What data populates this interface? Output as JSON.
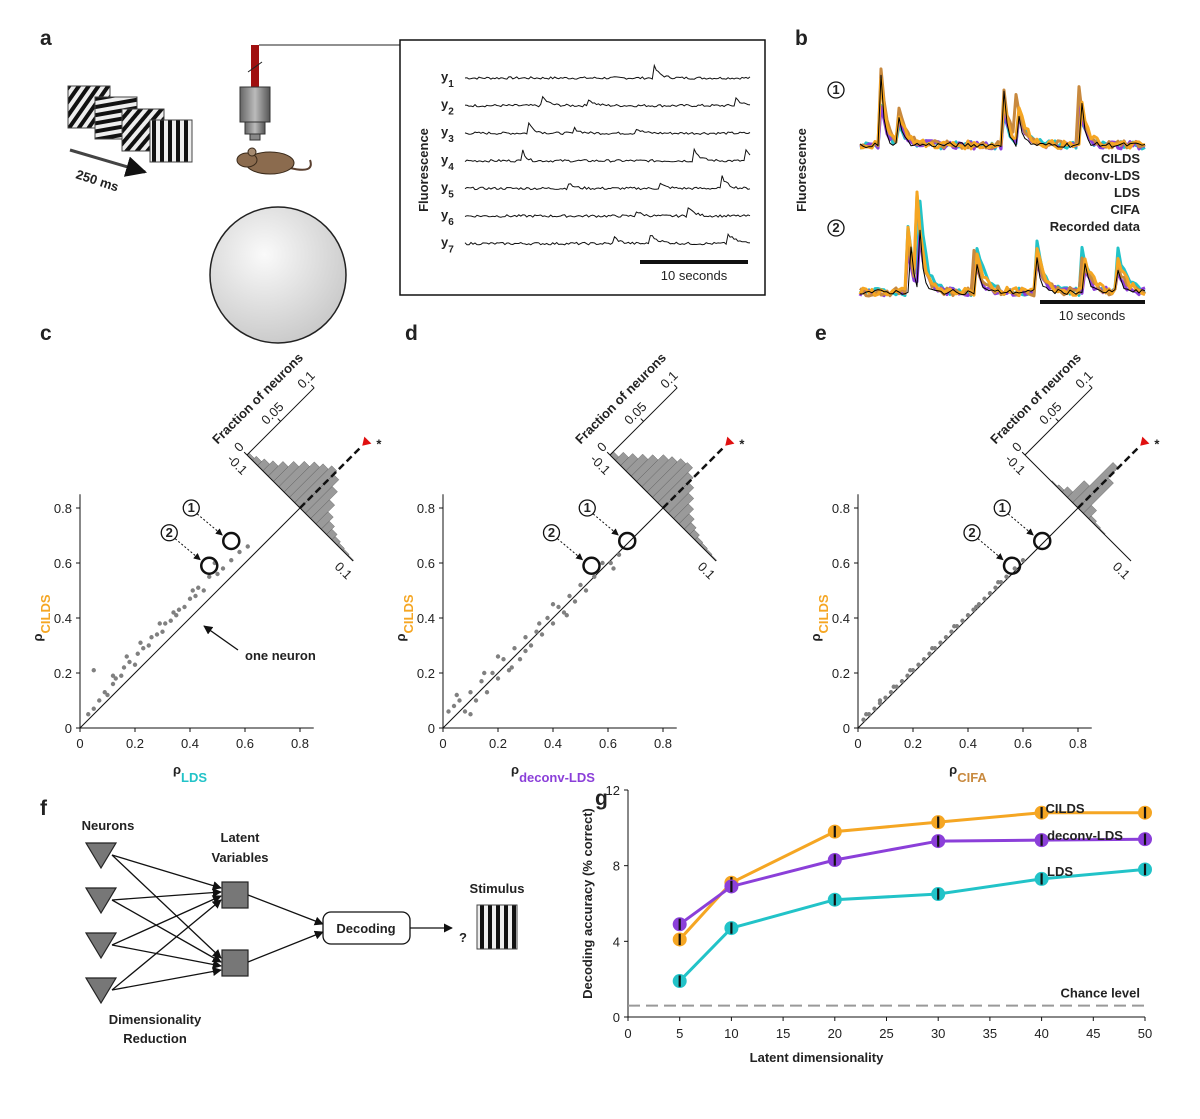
{
  "panel_labels": [
    "a",
    "b",
    "c",
    "d",
    "e",
    "f",
    "g"
  ],
  "panel_a": {
    "stimulus_duration": "250 ms",
    "ylabel": "Fluorescence",
    "trace_labels": [
      {
        "main": "y",
        "sub": "1"
      },
      {
        "main": "y",
        "sub": "2"
      },
      {
        "main": "y",
        "sub": "3"
      },
      {
        "main": "y",
        "sub": "4"
      },
      {
        "main": "y",
        "sub": "5"
      },
      {
        "main": "y",
        "sub": "6"
      },
      {
        "main": "y",
        "sub": "7"
      }
    ],
    "scalebar": "10 seconds"
  },
  "panel_b": {
    "ylabel": "Fluorescence",
    "neurons": [
      "1",
      "2"
    ],
    "legend": [
      {
        "name": "CILDS",
        "color": "#f5a623"
      },
      {
        "name": "deconv-LDS",
        "color": "#8b3fd9"
      },
      {
        "name": "LDS",
        "color": "#22c3c8"
      },
      {
        "name": "CIFA",
        "color": "#c8893e"
      },
      {
        "name": "Recorded data",
        "color": "#000000"
      }
    ],
    "scalebar": "10 seconds"
  },
  "panel_f": {
    "neurons": "Neurons",
    "latent": [
      "Latent",
      "Variables"
    ],
    "reduction": [
      "Dimensionality",
      "Reduction"
    ],
    "decoding": "Decoding",
    "question": "?",
    "stimulus": "Stimulus"
  },
  "chart_data": [
    {
      "type": "scatter",
      "xlabel": {
        "main": "ρ",
        "sub": "LDS",
        "color": "#22c3c8"
      },
      "ylabel": {
        "main": "ρ",
        "sub": "CILDS",
        "color": "#f5a623"
      },
      "xlim": [
        0,
        0.85
      ],
      "ylim": [
        0,
        0.85
      ],
      "xticks": [
        0,
        0.2,
        0.4,
        0.6,
        0.8
      ],
      "yticks": [
        0,
        0.2,
        0.4,
        0.6,
        0.8
      ],
      "color": "#808080",
      "x": [
        0.03,
        0.05,
        0.07,
        0.09,
        0.1,
        0.12,
        0.13,
        0.15,
        0.16,
        0.18,
        0.2,
        0.21,
        0.23,
        0.25,
        0.26,
        0.28,
        0.3,
        0.31,
        0.33,
        0.35,
        0.36,
        0.38,
        0.4,
        0.42,
        0.43,
        0.45,
        0.47,
        0.5,
        0.52,
        0.55,
        0.58,
        0.61,
        0.05,
        0.12,
        0.17,
        0.22,
        0.29,
        0.34,
        0.41,
        0.49
      ],
      "y": [
        0.05,
        0.07,
        0.1,
        0.13,
        0.12,
        0.16,
        0.18,
        0.19,
        0.22,
        0.24,
        0.23,
        0.27,
        0.29,
        0.3,
        0.33,
        0.34,
        0.35,
        0.38,
        0.39,
        0.41,
        0.43,
        0.44,
        0.47,
        0.48,
        0.51,
        0.5,
        0.55,
        0.56,
        0.58,
        0.61,
        0.64,
        0.66,
        0.21,
        0.19,
        0.26,
        0.31,
        0.38,
        0.42,
        0.5,
        0.6
      ],
      "highlight": {
        "x": [
          0.55,
          0.47
        ],
        "y": [
          0.68,
          0.59
        ],
        "labels": [
          "1",
          "2"
        ]
      },
      "annotation": "one neuron",
      "histogram": {
        "label": "Fraction of neurons",
        "marker": "*",
        "color": "#9a9a9a",
        "bins": [
          -0.1,
          -0.09,
          -0.08,
          -0.07,
          -0.06,
          -0.05,
          -0.04,
          -0.03,
          -0.02,
          -0.01,
          0,
          0.01,
          0.02,
          0.03,
          0.04,
          0.05,
          0.06,
          0.07,
          0.08,
          0.09,
          0.1
        ],
        "counts": [
          0.003,
          0.006,
          0.01,
          0.015,
          0.022,
          0.03,
          0.038,
          0.045,
          0.05,
          0.055,
          0.05,
          0.04,
          0.028,
          0.018,
          0.012,
          0.008,
          0.005,
          0.003,
          0.002,
          0.001
        ],
        "ticks": [
          0,
          0.05,
          0.1
        ],
        "bin_ticks": [
          -0.1,
          0.1
        ]
      }
    },
    {
      "type": "scatter",
      "xlabel": {
        "main": "ρ",
        "sub": "deconv-LDS",
        "color": "#8b3fd9"
      },
      "ylabel": {
        "main": "ρ",
        "sub": "CILDS",
        "color": "#f5a623"
      },
      "xlim": [
        0,
        0.85
      ],
      "ylim": [
        0,
        0.85
      ],
      "xticks": [
        0,
        0.2,
        0.4,
        0.6,
        0.8
      ],
      "yticks": [
        0,
        0.2,
        0.4,
        0.6,
        0.8
      ],
      "color": "#808080",
      "x": [
        0.02,
        0.04,
        0.06,
        0.08,
        0.1,
        0.12,
        0.14,
        0.16,
        0.18,
        0.2,
        0.22,
        0.24,
        0.26,
        0.28,
        0.3,
        0.32,
        0.34,
        0.36,
        0.38,
        0.4,
        0.42,
        0.44,
        0.46,
        0.48,
        0.5,
        0.52,
        0.55,
        0.58,
        0.61,
        0.64,
        0.1,
        0.15,
        0.25,
        0.35,
        0.2,
        0.3,
        0.4,
        0.45,
        0.05,
        0.62
      ],
      "y": [
        0.06,
        0.08,
        0.1,
        0.06,
        0.13,
        0.1,
        0.17,
        0.13,
        0.2,
        0.18,
        0.25,
        0.21,
        0.29,
        0.25,
        0.33,
        0.3,
        0.35,
        0.34,
        0.4,
        0.38,
        0.44,
        0.42,
        0.48,
        0.46,
        0.52,
        0.5,
        0.55,
        0.6,
        0.6,
        0.63,
        0.05,
        0.2,
        0.22,
        0.38,
        0.26,
        0.28,
        0.45,
        0.41,
        0.12,
        0.58
      ],
      "highlight": {
        "x": [
          0.67,
          0.54
        ],
        "y": [
          0.68,
          0.59
        ],
        "labels": [
          "1",
          "2"
        ]
      },
      "histogram": {
        "label": "Fraction of neurons",
        "marker": "*",
        "color": "#9a9a9a",
        "bins": [
          -0.1,
          -0.09,
          -0.08,
          -0.07,
          -0.06,
          -0.05,
          -0.04,
          -0.03,
          -0.02,
          -0.01,
          0,
          0.01,
          0.02,
          0.03,
          0.04,
          0.05,
          0.06,
          0.07,
          0.08,
          0.09,
          0.1
        ],
        "counts": [
          0.005,
          0.012,
          0.018,
          0.025,
          0.032,
          0.04,
          0.045,
          0.05,
          0.052,
          0.045,
          0.038,
          0.03,
          0.022,
          0.015,
          0.01,
          0.007,
          0.004,
          0.003,
          0.002,
          0.001
        ],
        "ticks": [
          0,
          0.05,
          0.1
        ],
        "bin_ticks": [
          -0.1,
          0.1
        ]
      }
    },
    {
      "type": "scatter",
      "xlabel": {
        "main": "ρ",
        "sub": "CIFA",
        "color": "#c8893e"
      },
      "ylabel": {
        "main": "ρ",
        "sub": "CILDS",
        "color": "#f5a623"
      },
      "xlim": [
        0,
        0.85
      ],
      "ylim": [
        0,
        0.85
      ],
      "xticks": [
        0,
        0.2,
        0.4,
        0.6,
        0.8
      ],
      "yticks": [
        0,
        0.2,
        0.4,
        0.6,
        0.8
      ],
      "color": "#808080",
      "x": [
        0.02,
        0.04,
        0.06,
        0.08,
        0.1,
        0.12,
        0.14,
        0.16,
        0.18,
        0.2,
        0.22,
        0.24,
        0.26,
        0.28,
        0.3,
        0.32,
        0.34,
        0.36,
        0.38,
        0.4,
        0.42,
        0.44,
        0.46,
        0.48,
        0.5,
        0.52,
        0.54,
        0.57,
        0.6,
        0.03,
        0.08,
        0.13,
        0.19,
        0.27,
        0.35,
        0.43,
        0.51
      ],
      "y": [
        0.03,
        0.05,
        0.07,
        0.09,
        0.11,
        0.13,
        0.15,
        0.17,
        0.19,
        0.21,
        0.23,
        0.25,
        0.27,
        0.29,
        0.31,
        0.33,
        0.35,
        0.37,
        0.39,
        0.41,
        0.43,
        0.45,
        0.47,
        0.49,
        0.51,
        0.53,
        0.55,
        0.58,
        0.61,
        0.05,
        0.1,
        0.15,
        0.21,
        0.29,
        0.37,
        0.44,
        0.53
      ],
      "highlight": {
        "x": [
          0.67,
          0.56
        ],
        "y": [
          0.68,
          0.59
        ],
        "labels": [
          "1",
          "2"
        ]
      },
      "histogram": {
        "label": "Fraction of neurons",
        "marker": "*",
        "color": "#9a9a9a",
        "bins": [
          -0.1,
          -0.09,
          -0.08,
          -0.07,
          -0.06,
          -0.05,
          -0.04,
          -0.03,
          -0.02,
          -0.01,
          0,
          0.01,
          0.02,
          0.03,
          0.04,
          0.05,
          0.06,
          0.07,
          0.08,
          0.09,
          0.1
        ],
        "counts": [
          0,
          0,
          0,
          0,
          0,
          0.001,
          0.003,
          0.008,
          0.025,
          0.06,
          0.045,
          0.012,
          0.004,
          0.002,
          0.001,
          0,
          0,
          0,
          0,
          0
        ],
        "ticks": [
          0,
          0.05,
          0.1
        ],
        "bin_ticks": [
          -0.1,
          0.1
        ]
      }
    },
    {
      "type": "line",
      "xlabel": "Latent dimensionality",
      "ylabel": "Decoding accuracy (% correct)",
      "x": [
        5,
        10,
        20,
        30,
        40,
        50
      ],
      "xlim": [
        0,
        50
      ],
      "ylim": [
        0,
        12
      ],
      "xticks": [
        0,
        5,
        10,
        15,
        20,
        25,
        30,
        35,
        40,
        45,
        50
      ],
      "yticks": [
        0,
        4,
        8,
        12
      ],
      "series": [
        {
          "name": "CILDS",
          "color": "#f5a623",
          "values": [
            4.1,
            7.1,
            9.8,
            10.3,
            10.8,
            10.8
          ],
          "errors": [
            0.3,
            0.3,
            0.3,
            0.3,
            0.3,
            0.3
          ]
        },
        {
          "name": "deconv-LDS",
          "color": "#8b3fd9",
          "values": [
            4.9,
            6.9,
            8.3,
            9.3,
            9.35,
            9.4
          ],
          "errors": [
            0.3,
            0.3,
            0.3,
            0.3,
            0.3,
            0.3
          ]
        },
        {
          "name": "LDS",
          "color": "#22c3c8",
          "values": [
            1.9,
            4.7,
            6.2,
            6.5,
            7.3,
            7.8
          ],
          "errors": [
            0.3,
            0.3,
            0.3,
            0.3,
            0.3,
            0.3
          ]
        }
      ],
      "chance_level": {
        "label": "Chance level",
        "value": 0.6,
        "color": "#999999"
      }
    }
  ]
}
